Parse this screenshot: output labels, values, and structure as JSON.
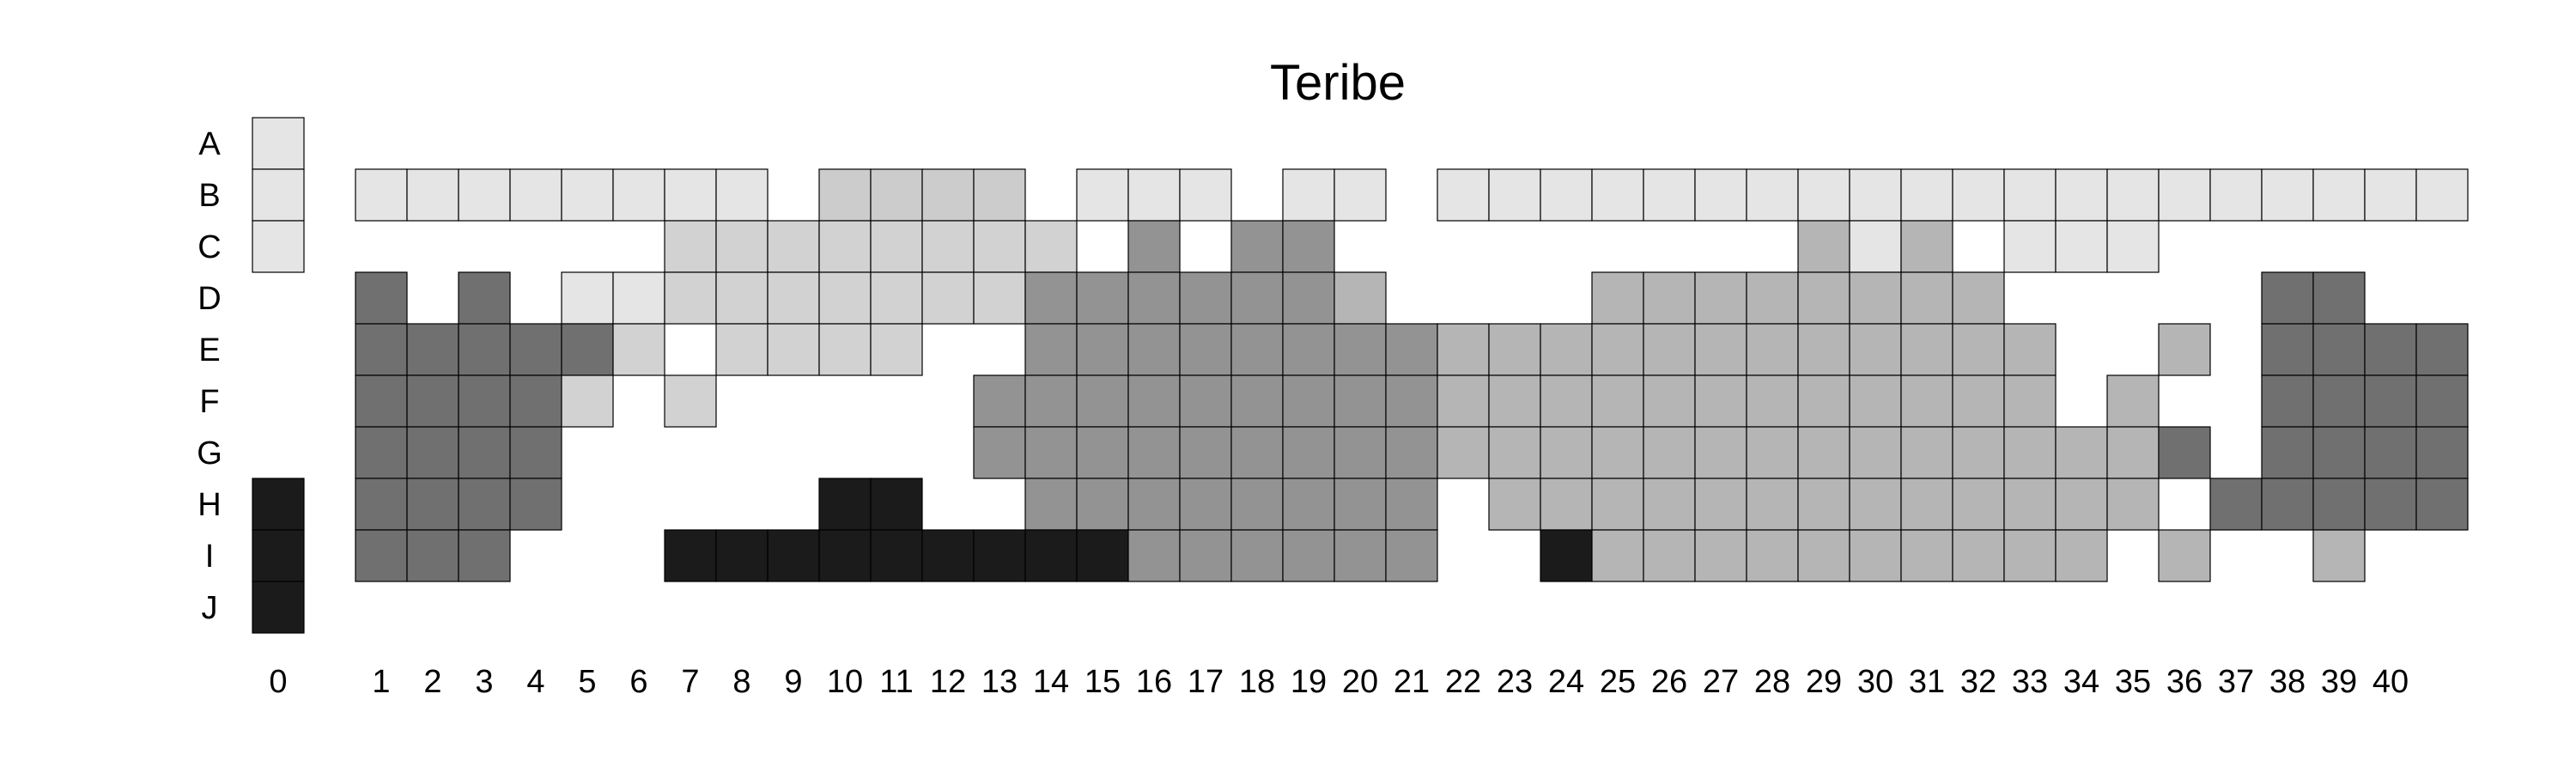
{
  "chart_data": {
    "type": "heatmap",
    "title": "Teribe",
    "rows": [
      "A",
      "B",
      "C",
      "D",
      "E",
      "F",
      "G",
      "H",
      "I",
      "J"
    ],
    "columns": [
      "0",
      "1",
      "2",
      "3",
      "4",
      "5",
      "6",
      "7",
      "8",
      "9",
      "10",
      "11",
      "12",
      "13",
      "14",
      "15",
      "16",
      "17",
      "18",
      "19",
      "20",
      "21",
      "22",
      "23",
      "24",
      "25",
      "26",
      "27",
      "28",
      "29",
      "30",
      "31",
      "32",
      "33",
      "34",
      "35",
      "36",
      "37",
      "38",
      "39",
      "40"
    ],
    "palette": {
      "1": "#e5e5e5",
      "2": "#d2d2d2",
      "3": "#cccccc",
      "4": "#b5b5b5",
      "5": "#939393",
      "6": "#707070",
      "7": "#1b1b1b"
    },
    "legend_column": {
      "column": "0",
      "cells": [
        {
          "row": "A",
          "level": 1
        },
        {
          "row": "B",
          "level": 1
        },
        {
          "row": "C",
          "level": 1
        },
        {
          "row": "H",
          "level": 7
        },
        {
          "row": "I",
          "level": 7
        },
        {
          "row": "J",
          "level": 7
        }
      ]
    },
    "grid": {
      "B": "11111111.3333.111.11.11111111111111111111",
      "C": "......22222222.5.55.........414.111......",
      "D": "6.6.1122222225555554....44444444.....66..",
      "E": "666662.2222..55555555444444444444..4.6666",
      "F": "66662.2.....555555555444444444444.4..6666",
      "G": "6666........555555555444444444444446.6666",
      "H": "6666.....77..55555555.4444444444444.66666",
      "I": "666...777777777555555..74444444444.4..4.."
    },
    "grid_start_column": "1",
    "grid_note": "each character = one cell for columns 1..40; digits index the palette, '.' = empty"
  }
}
